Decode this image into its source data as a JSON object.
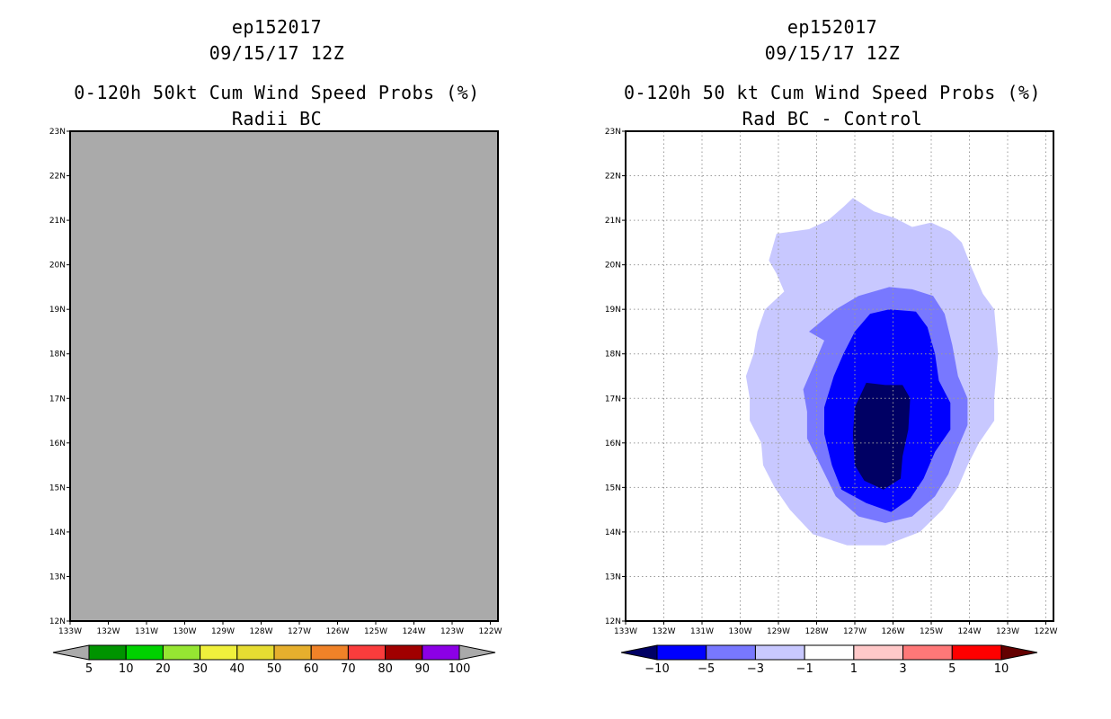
{
  "chart_data": [
    {
      "type": "heatmap",
      "title_lines": [
        "ep152017",
        "09/15/17 12Z",
        "0-120h 50kt Cum Wind Speed Probs (%)",
        "Radii BC"
      ],
      "xlabel": "",
      "ylabel": "",
      "xlim": [
        -133,
        -121.8
      ],
      "ylim": [
        12,
        23
      ],
      "x_ticks": [
        -133,
        -132,
        -131,
        -130,
        -129,
        -128,
        -127,
        -126,
        -125,
        -124,
        -123,
        -122
      ],
      "x_tick_labels": [
        "133W",
        "132W",
        "131W",
        "130W",
        "129W",
        "128W",
        "127W",
        "126W",
        "125W",
        "124W",
        "123W",
        "122W"
      ],
      "y_ticks": [
        12,
        13,
        14,
        15,
        16,
        17,
        18,
        19,
        20,
        21,
        22,
        23
      ],
      "y_tick_labels": [
        "12N",
        "13N",
        "14N",
        "15N",
        "16N",
        "17N",
        "18N",
        "19N",
        "20N",
        "21N",
        "22N",
        "23N"
      ],
      "grid": false,
      "field_fill": "#aaaaaa",
      "colorbar": {
        "colors": [
          "#009400",
          "#00d200",
          "#96e632",
          "#f0f03c",
          "#e6dc32",
          "#e6af2d",
          "#f08228",
          "#fa3c3c",
          "#a00000",
          "#8c00e6"
        ],
        "end_colors": [
          "#aaaaaa",
          "#aaaaaa"
        ],
        "labels": [
          "5",
          "10",
          "20",
          "30",
          "40",
          "50",
          "60",
          "70",
          "80",
          "90",
          "100"
        ]
      }
    },
    {
      "type": "heatmap",
      "title_lines": [
        "ep152017",
        "09/15/17 12Z",
        "0-120h 50 kt Cum Wind Speed Probs (%)",
        "Rad BC - Control"
      ],
      "xlabel": "",
      "ylabel": "",
      "xlim": [
        -133,
        -121.8
      ],
      "ylim": [
        12,
        23
      ],
      "x_ticks": [
        -133,
        -132,
        -131,
        -130,
        -129,
        -128,
        -127,
        -126,
        -125,
        -124,
        -123,
        -122
      ],
      "x_tick_labels": [
        "133W",
        "132W",
        "131W",
        "130W",
        "129W",
        "128W",
        "127W",
        "126W",
        "125W",
        "124W",
        "123W",
        "122W"
      ],
      "y_ticks": [
        12,
        13,
        14,
        15,
        16,
        17,
        18,
        19,
        20,
        21,
        22,
        23
      ],
      "y_tick_labels": [
        "12N",
        "13N",
        "14N",
        "15N",
        "16N",
        "17N",
        "18N",
        "19N",
        "20N",
        "21N",
        "22N",
        "23N"
      ],
      "grid": true,
      "contour_levels": [
        {
          "range": "-3 to -1",
          "color": "#c8c8ff",
          "polygon": [
            [
              -127.05,
              21.5
            ],
            [
              -126.5,
              21.2
            ],
            [
              -125.95,
              21.05
            ],
            [
              -125.5,
              20.85
            ],
            [
              -125,
              20.95
            ],
            [
              -124.5,
              20.75
            ],
            [
              -124.2,
              20.5
            ],
            [
              -123.95,
              19.95
            ],
            [
              -123.65,
              19.35
            ],
            [
              -123.35,
              19.0
            ],
            [
              -123.25,
              18.0
            ],
            [
              -123.35,
              17.0
            ],
            [
              -123.35,
              16.5
            ],
            [
              -123.75,
              16.0
            ],
            [
              -124.05,
              15.5
            ],
            [
              -124.3,
              15.0
            ],
            [
              -124.7,
              14.5
            ],
            [
              -125.3,
              14.0
            ],
            [
              -126.2,
              13.7
            ],
            [
              -127.2,
              13.7
            ],
            [
              -128.1,
              13.95
            ],
            [
              -128.7,
              14.5
            ],
            [
              -129.1,
              15.0
            ],
            [
              -129.4,
              15.5
            ],
            [
              -129.45,
              16.0
            ],
            [
              -129.75,
              16.5
            ],
            [
              -129.75,
              17.0
            ],
            [
              -129.85,
              17.5
            ],
            [
              -129.65,
              18.0
            ],
            [
              -129.55,
              18.5
            ],
            [
              -129.35,
              19.0
            ],
            [
              -128.85,
              19.4
            ],
            [
              -129.05,
              19.8
            ],
            [
              -129.25,
              20.1
            ],
            [
              -129.05,
              20.7
            ],
            [
              -128.2,
              20.8
            ],
            [
              -127.7,
              21.0
            ],
            [
              -127.3,
              21.3
            ]
          ]
        },
        {
          "range": "-5 to -3",
          "color": "#7878ff",
          "polygon": [
            [
              -126.1,
              19.5
            ],
            [
              -125.5,
              19.45
            ],
            [
              -124.95,
              19.3
            ],
            [
              -124.65,
              18.9
            ],
            [
              -124.45,
              18.2
            ],
            [
              -124.3,
              17.5
            ],
            [
              -124.05,
              17.0
            ],
            [
              -124.05,
              16.4
            ],
            [
              -124.3,
              15.9
            ],
            [
              -124.55,
              15.3
            ],
            [
              -124.9,
              14.8
            ],
            [
              -125.5,
              14.35
            ],
            [
              -126.2,
              14.2
            ],
            [
              -126.9,
              14.35
            ],
            [
              -127.5,
              14.8
            ],
            [
              -127.9,
              15.5
            ],
            [
              -128.25,
              16.1
            ],
            [
              -128.25,
              16.7
            ],
            [
              -128.35,
              17.2
            ],
            [
              -128.05,
              17.8
            ],
            [
              -127.8,
              18.3
            ],
            [
              -128.2,
              18.5
            ],
            [
              -127.5,
              19.0
            ],
            [
              -126.9,
              19.3
            ]
          ]
        },
        {
          "range": "-10 to -5",
          "color": "#0000ff",
          "polygon": [
            [
              -126.1,
              19.0
            ],
            [
              -125.4,
              18.95
            ],
            [
              -125.1,
              18.6
            ],
            [
              -124.9,
              18.0
            ],
            [
              -124.8,
              17.4
            ],
            [
              -124.5,
              16.9
            ],
            [
              -124.5,
              16.3
            ],
            [
              -124.9,
              15.8
            ],
            [
              -125.2,
              15.2
            ],
            [
              -125.55,
              14.75
            ],
            [
              -126.05,
              14.45
            ],
            [
              -126.7,
              14.65
            ],
            [
              -127.35,
              14.95
            ],
            [
              -127.6,
              15.5
            ],
            [
              -127.8,
              16.2
            ],
            [
              -127.8,
              16.8
            ],
            [
              -127.55,
              17.5
            ],
            [
              -127.3,
              18.0
            ],
            [
              -127.0,
              18.5
            ],
            [
              -126.6,
              18.9
            ]
          ]
        },
        {
          "range": "< -10",
          "color": "#000064",
          "polygon": [
            [
              -126.7,
              17.35
            ],
            [
              -126.2,
              17.3
            ],
            [
              -125.75,
              17.3
            ],
            [
              -125.55,
              17.0
            ],
            [
              -125.6,
              16.3
            ],
            [
              -125.75,
              15.7
            ],
            [
              -125.8,
              15.2
            ],
            [
              -126.25,
              14.95
            ],
            [
              -126.75,
              15.15
            ],
            [
              -127.0,
              15.5
            ],
            [
              -127.05,
              16.2
            ],
            [
              -127.0,
              16.8
            ]
          ]
        }
      ],
      "colorbar": {
        "colors": [
          "#0000ff",
          "#7878ff",
          "#c8c8ff",
          "#ffffff",
          "#ffc8c8",
          "#ff7878",
          "#ff0000"
        ],
        "end_colors": [
          "#000064",
          "#640000"
        ],
        "labels": [
          "-10",
          "-5",
          "-3",
          "-1",
          "1",
          "3",
          "5",
          "10"
        ]
      }
    }
  ]
}
